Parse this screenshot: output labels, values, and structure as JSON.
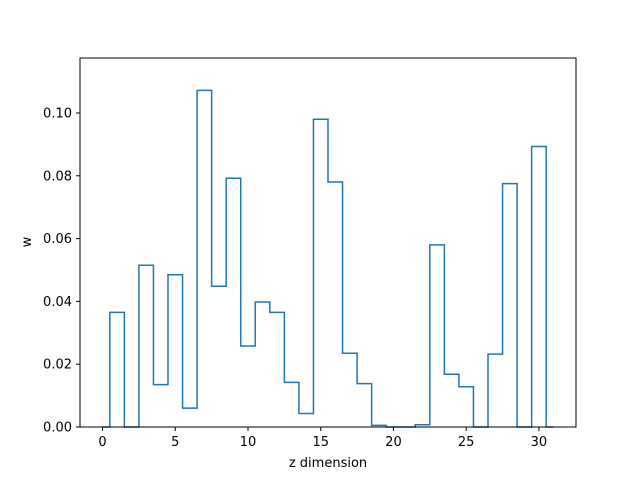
{
  "chart_data": {
    "type": "step",
    "title": "",
    "xlabel": "z dimension",
    "ylabel": "w",
    "xlim": [
      -1.55,
      32.55
    ],
    "ylim": [
      0,
      0.1175
    ],
    "x_ticks": [
      0,
      5,
      10,
      15,
      20,
      25,
      30
    ],
    "x_tick_labels": [
      "0",
      "5",
      "10",
      "15",
      "20",
      "25",
      "30"
    ],
    "y_ticks": [
      0.0,
      0.02,
      0.04,
      0.06,
      0.08,
      0.1
    ],
    "y_tick_labels": [
      "0.00",
      "0.02",
      "0.04",
      "0.06",
      "0.08",
      "0.10"
    ],
    "grid": false,
    "legend": false,
    "bin_edges": [
      0,
      0.5,
      1.5,
      2.5,
      3.5,
      4.5,
      5.5,
      6.5,
      7.5,
      8.5,
      9.5,
      10.5,
      11.5,
      12.5,
      13.5,
      14.5,
      15.5,
      16.5,
      17.5,
      18.5,
      19.5,
      20.5,
      21.5,
      22.5,
      23.5,
      24.5,
      25.5,
      26.5,
      27.5,
      28.5,
      29.5,
      30.5,
      31.0
    ],
    "values": [
      0.0,
      0.0365,
      0.0,
      0.0515,
      0.0135,
      0.0485,
      0.006,
      0.1072,
      0.0448,
      0.0792,
      0.0258,
      0.0398,
      0.0365,
      0.0142,
      0.0043,
      0.098,
      0.078,
      0.0235,
      0.0138,
      0.0005,
      0.0,
      0.0,
      0.0007,
      0.058,
      0.0168,
      0.0128,
      0.0,
      0.0232,
      0.0775,
      0.0,
      0.0893,
      0.0
    ],
    "color": "#1f77b4"
  }
}
